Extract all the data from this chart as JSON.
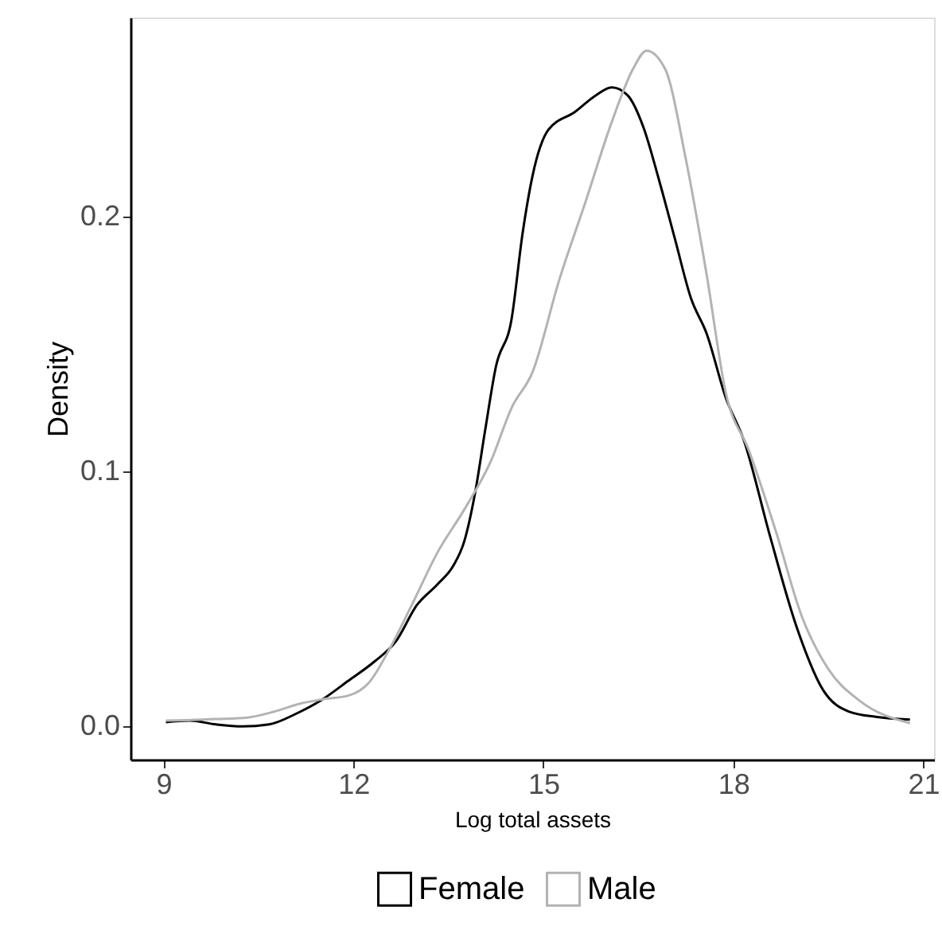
{
  "chart_data": {
    "type": "line",
    "xlabel": "Log total assets",
    "ylabel": "Density",
    "xlim": [
      8.48,
      21.17
    ],
    "xticks": [
      9,
      12,
      15,
      18,
      21
    ],
    "ylim": [
      -0.013,
      0.278
    ],
    "yticks": [
      {
        "value": 0,
        "label": "0.0"
      },
      {
        "value": 0.1,
        "label": "0.1"
      },
      {
        "value": 0.2,
        "label": "0.2"
      }
    ],
    "grid": false,
    "legend": "bottom",
    "line_style": "solid",
    "marker": "none",
    "series": [
      {
        "name": "Female",
        "color": "#000000",
        "x": [
          9.04,
          9.42,
          9.83,
          10.25,
          10.67,
          11.08,
          11.5,
          11.92,
          12.33,
          12.67,
          13.0,
          13.33,
          13.58,
          13.75,
          13.92,
          14.08,
          14.25,
          14.5,
          14.67,
          14.83,
          15.08,
          15.5,
          15.83,
          16.08,
          16.33,
          16.58,
          16.83,
          17.08,
          17.33,
          17.58,
          17.88,
          18.17,
          18.58,
          19.0,
          19.42,
          19.83,
          20.25,
          20.79
        ],
        "values": [
          0.0017,
          0.0023,
          0.0008,
          0.0,
          0.0008,
          0.0048,
          0.0104,
          0.0179,
          0.0254,
          0.0333,
          0.0475,
          0.0558,
          0.0631,
          0.0725,
          0.0913,
          0.116,
          0.141,
          0.16,
          0.193,
          0.216,
          0.234,
          0.241,
          0.2475,
          0.2506,
          0.2475,
          0.235,
          0.214,
          0.191,
          0.168,
          0.154,
          0.129,
          0.112,
          0.0746,
          0.039,
          0.0142,
          0.0058,
          0.0038,
          0.0027
        ]
      },
      {
        "name": "Male",
        "color": "#b3b3b3",
        "x": [
          9.04,
          9.83,
          10.33,
          10.75,
          11.17,
          11.5,
          11.92,
          12.25,
          12.58,
          12.92,
          13.33,
          13.75,
          14.17,
          14.5,
          14.83,
          15.25,
          15.67,
          16.08,
          16.42,
          16.63,
          16.92,
          17.25,
          17.58,
          17.88,
          18.25,
          18.67,
          19.08,
          19.5,
          20.0,
          20.79
        ],
        "values": [
          0.0023,
          0.0029,
          0.0035,
          0.0058,
          0.009,
          0.0106,
          0.0121,
          0.0173,
          0.0308,
          0.0475,
          0.0683,
          0.085,
          0.104,
          0.125,
          0.139,
          0.175,
          0.206,
          0.237,
          0.258,
          0.265,
          0.258,
          0.2225,
          0.177,
          0.131,
          0.108,
          0.0767,
          0.0433,
          0.0225,
          0.01,
          0.0013
        ]
      }
    ]
  }
}
